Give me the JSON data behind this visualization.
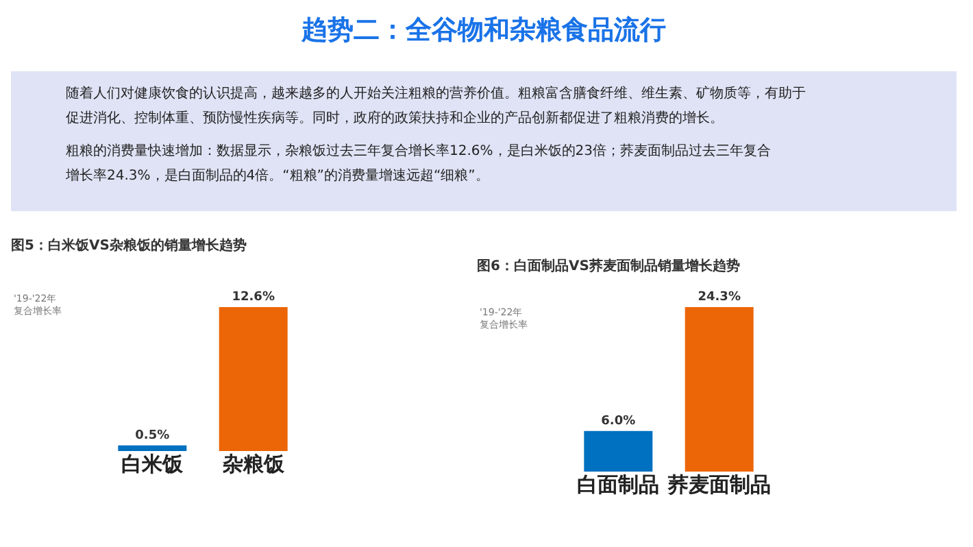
{
  "chart_data": [
    {
      "type": "other",
      "title": "趋势二：全谷物和杂粮食品流行",
      "annotations": [
        "随着人们对健康饮食的认识提高，越来越多的人开始关注粗粮的营养价值。粗粮富含膳食纤维、维生素、矿物质等，有助于",
        "促进消化、控制体重、预防慢性疾病等。同时，政府的政策扶持和企业的产品创新都促进了粗粮消费的增长。",
        "粗粮的消费量快速增加：数据显示，杂粮饭过去三年复合增长率12.6%，是白米饭的23倍；荞麦面制品过去三年复合",
        "增长率24.3%，是白面制品的4倍。“粗粮”的消费量增速远超“细粮”。"
      ]
    },
    {
      "type": "bar",
      "title": "图5：白米饭VS杂粮饭的销量增长趋势",
      "ylabel": "'19-'22年复合增长率",
      "categories": [
        "白米饭",
        "杂粮饭"
      ],
      "values": [
        0.5,
        12.6
      ],
      "value_labels": [
        "0.5%",
        "12.6%"
      ],
      "colors": [
        "#0070c0",
        "#ec6608"
      ],
      "tick_labels": "x"
    },
    {
      "type": "bar",
      "title": "图6：白面制品VS荞麦面制品销量增长趋势",
      "ylabel": "'19-'22年复合增长率",
      "categories": [
        "白面制品",
        "荞麦面制品"
      ],
      "values": [
        6.0,
        24.3
      ],
      "value_labels": [
        "6.0%",
        "24.3%"
      ],
      "colors": [
        "#0070c0",
        "#ec6608"
      ],
      "tick_labels": "x"
    }
  ]
}
